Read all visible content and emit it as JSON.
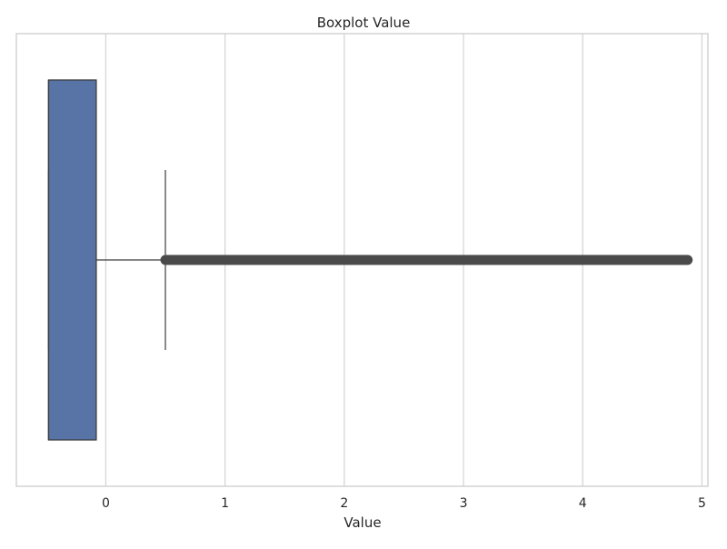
{
  "chart_data": {
    "type": "boxplot",
    "orientation": "horizontal",
    "title": "Boxplot Value",
    "xlabel": "Value",
    "ylabel": "",
    "xlim": [
      -0.75,
      5.05
    ],
    "xticks": [
      0,
      1,
      2,
      3,
      4,
      5
    ],
    "xtick_labels": [
      "0",
      "1",
      "2",
      "3",
      "4",
      "5"
    ],
    "grid": true,
    "box": {
      "q1": -0.48,
      "median": -0.48,
      "q3": -0.08,
      "whisker_low": -0.48,
      "whisker_high": 0.5,
      "outlier_min": 0.5,
      "outlier_max": 4.88
    },
    "colors": {
      "box_fill": "#5874a6",
      "box_edge": "#3d3d3d",
      "whisker": "#3d3d3d",
      "outliers": "#4a4a4a",
      "grid": "#d6d6d6",
      "frame": "#cccccc",
      "text": "#262626"
    }
  }
}
